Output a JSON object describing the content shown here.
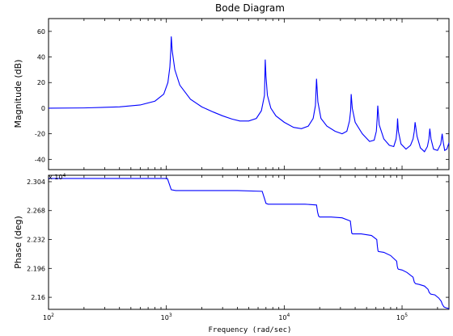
{
  "chart_data": {
    "type": "line",
    "title": "Bode Diagram",
    "xlabel": "Frequency (rad/sec)",
    "xscale": "log",
    "xlim": [
      100,
      250000
    ],
    "x_tick_labels": [
      {
        "value": 100,
        "base": "10",
        "exp": "2"
      },
      {
        "value": 1000,
        "base": "10",
        "exp": "3"
      },
      {
        "value": 10000,
        "base": "10",
        "exp": "4"
      },
      {
        "value": 100000,
        "base": "10",
        "exp": "5"
      }
    ],
    "grid": false,
    "panels": [
      {
        "name": "magnitude",
        "ylabel": "Magnitude (dB)",
        "ylim": [
          -48,
          70
        ],
        "y_ticks": [
          60,
          40,
          20,
          0,
          -20,
          -40
        ],
        "y_tick_labels": [
          "60",
          "40",
          "20",
          "0",
          "-20",
          "-40"
        ],
        "series": [
          {
            "color": "#0000ff",
            "x": [
              100,
              200,
              400,
              600,
              800,
              950,
              1030,
              1070,
              1090,
              1100,
              1120,
              1180,
              1300,
              1600,
              2000,
              2500,
              3000,
              3600,
              4200,
              5000,
              5800,
              6400,
              6800,
              6900,
              7000,
              7200,
              7700,
              8500,
              10000,
              12000,
              14000,
              16000,
              17600,
              18400,
              18800,
              19300,
              20500,
              23000,
              27000,
              31000,
              34000,
              35800,
              36600,
              37000,
              37800,
              40000,
              46000,
              53000,
              58000,
              60500,
              61500,
              62200,
              64000,
              70000,
              78000,
              85000,
              89000,
              90800,
              91600,
              93000,
              98000,
              108000,
              118000,
              124000,
              127000,
              129000,
              134000,
              143000,
              155000,
              164000,
              169000,
              172000,
              176000,
              185000,
              200000,
              213000,
              219000,
              223000,
              230000,
              240000,
              250000
            ],
            "y": [
              0,
              0.2,
              1,
              2.5,
              5.5,
              11,
              20,
              32,
              45,
              56,
              45,
              30,
              18,
              7,
              1,
              -3,
              -6,
              -8.5,
              -10,
              -10,
              -8,
              -2,
              10,
              38,
              25,
              10,
              0,
              -6,
              -11,
              -15,
              -16,
              -14,
              -8,
              2,
              23,
              5,
              -8,
              -14,
              -18,
              -20,
              -18,
              -10,
              -2,
              11,
              0,
              -11,
              -20,
              -26,
              -25,
              -18,
              -8,
              2,
              -13,
              -24,
              -29,
              -30,
              -24,
              -16,
              -8,
              -18,
              -28,
              -32,
              -29,
              -24,
              -18,
              -11,
              -22,
              -31,
              -34,
              -30,
              -24,
              -16,
              -24,
              -32,
              -33,
              -28,
              -20,
              -26,
              -33,
              -32,
              -27
            ]
          }
        ]
      },
      {
        "name": "phase",
        "ylabel": "Phase (deg)",
        "y_exponent_label": {
          "base": "x 10",
          "exp": "4"
        },
        "ylim": [
          21450,
          23120
        ],
        "y_ticks": [
          23040,
          22680,
          22320,
          21960,
          21600
        ],
        "y_tick_labels": [
          "2.304",
          "2.268",
          "2.232",
          "2.196",
          "2.16"
        ],
        "series": [
          {
            "color": "#0000ff",
            "x": [
              100,
              1020,
              1100,
              1200,
              2000,
              4000,
              6500,
              6800,
              7000,
              7300,
              10000,
              15000,
              18800,
              19200,
              19600,
              20000,
              25000,
              31000,
              36400,
              37000,
              37400,
              38000,
              45000,
              55000,
              61000,
              61800,
              62500,
              63000,
              70000,
              80000,
              90000,
              91000,
              92000,
              93000,
              100000,
              110000,
              124000,
              127000,
              130000,
              140000,
              155000,
              166000,
              170000,
              175000,
              190000,
              205000,
              215000,
              220000,
              227000,
              235000,
              250000
            ],
            "y": [
              23080,
              23080,
              22940,
              22930,
              22930,
              22930,
              22920,
              22830,
              22770,
              22760,
              22760,
              22760,
              22750,
              22660,
              22610,
              22600,
              22600,
              22590,
              22550,
              22460,
              22400,
              22390,
              22390,
              22370,
              22320,
              22230,
              22180,
              22170,
              22160,
              22120,
              22050,
              21990,
              21960,
              21950,
              21940,
              21910,
              21850,
              21790,
              21770,
              21760,
              21740,
              21700,
              21660,
              21640,
              21630,
              21590,
              21550,
              21510,
              21480,
              21470,
              21460
            ]
          }
        ]
      }
    ]
  }
}
